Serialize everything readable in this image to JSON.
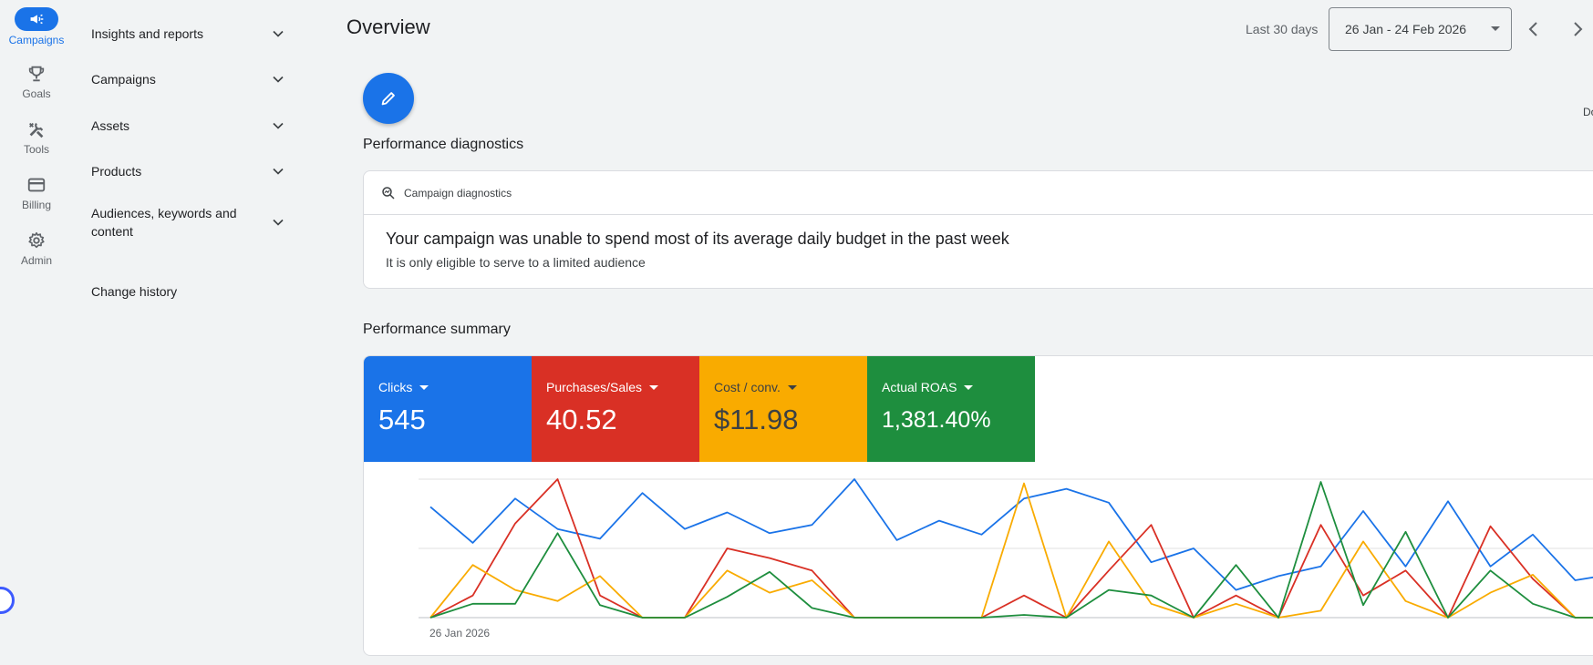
{
  "rail": [
    {
      "label": "Campaigns",
      "icon": "megaphone-icon",
      "active": true
    },
    {
      "label": "Goals",
      "icon": "trophy-icon"
    },
    {
      "label": "Tools",
      "icon": "tools-icon"
    },
    {
      "label": "Billing",
      "icon": "credit-card-icon"
    },
    {
      "label": "Admin",
      "icon": "gear-icon"
    }
  ],
  "nav": [
    {
      "label": "Insights and reports",
      "expandable": true
    },
    {
      "label": "Campaigns",
      "expandable": true
    },
    {
      "label": "Assets",
      "expandable": true
    },
    {
      "label": "Products",
      "expandable": true
    },
    {
      "label": "Audiences, keywords and content",
      "expandable": true
    },
    {
      "label": "Change history",
      "expandable": false
    }
  ],
  "header": {
    "title": "Overview",
    "range_label": "Last 30 days",
    "date_range": "26 Jan - 24 Feb 2026",
    "cut_text": "Do"
  },
  "diagnostics": {
    "section_title": "Performance diagnostics",
    "card_title": "Campaign diagnostics",
    "message": "Your campaign was unable to spend most of its average daily budget in the past week",
    "detail": "It is only eligible to serve to a limited audience"
  },
  "summary": {
    "section_title": "Performance summary",
    "metrics": [
      {
        "name": "Clicks",
        "value": "545",
        "color": "#1a73e8",
        "text_color": "#ffffff"
      },
      {
        "name": "Purchases/Sales",
        "value": "40.52",
        "color": "#d93025",
        "text_color": "#ffffff"
      },
      {
        "name": "Cost / conv.",
        "value": "$11.98",
        "color": "#f9ab00",
        "text_color": "#3c4043"
      },
      {
        "name": "Actual ROAS",
        "value": "1,381.40%",
        "color": "#1e8e3e",
        "text_color": "#ffffff"
      }
    ]
  },
  "chart_data": {
    "type": "line",
    "x_start_label": "26 Jan 2026",
    "ylim": [
      0,
      100
    ],
    "grid": true,
    "series": [
      {
        "color": "#1a73e8",
        "values": [
          80,
          54,
          86,
          64,
          57,
          90,
          64,
          76,
          61,
          67,
          100,
          56,
          70,
          60,
          86,
          93,
          83,
          40,
          50,
          20,
          30,
          37,
          77,
          37,
          84,
          37,
          60,
          27,
          32
        ]
      },
      {
        "color": "#d93025",
        "values": [
          0,
          16,
          68,
          100,
          16,
          0,
          0,
          50,
          43,
          34,
          0,
          0,
          0,
          0,
          16,
          0,
          34,
          67,
          0,
          16,
          0,
          67,
          16,
          34,
          0,
          66,
          28,
          0,
          0
        ]
      },
      {
        "color": "#f9ab00",
        "values": [
          0,
          38,
          20,
          12,
          30,
          0,
          0,
          34,
          18,
          27,
          0,
          0,
          0,
          0,
          97,
          0,
          55,
          10,
          0,
          10,
          0,
          5,
          55,
          12,
          0,
          18,
          31,
          0,
          0
        ]
      },
      {
        "color": "#1e8e3e",
        "values": [
          0,
          10,
          10,
          61,
          9,
          0,
          0,
          15,
          33,
          7,
          0,
          0,
          0,
          0,
          2,
          0,
          20,
          16,
          0,
          38,
          0,
          98,
          9,
          62,
          0,
          34,
          10,
          0,
          0
        ]
      }
    ]
  }
}
